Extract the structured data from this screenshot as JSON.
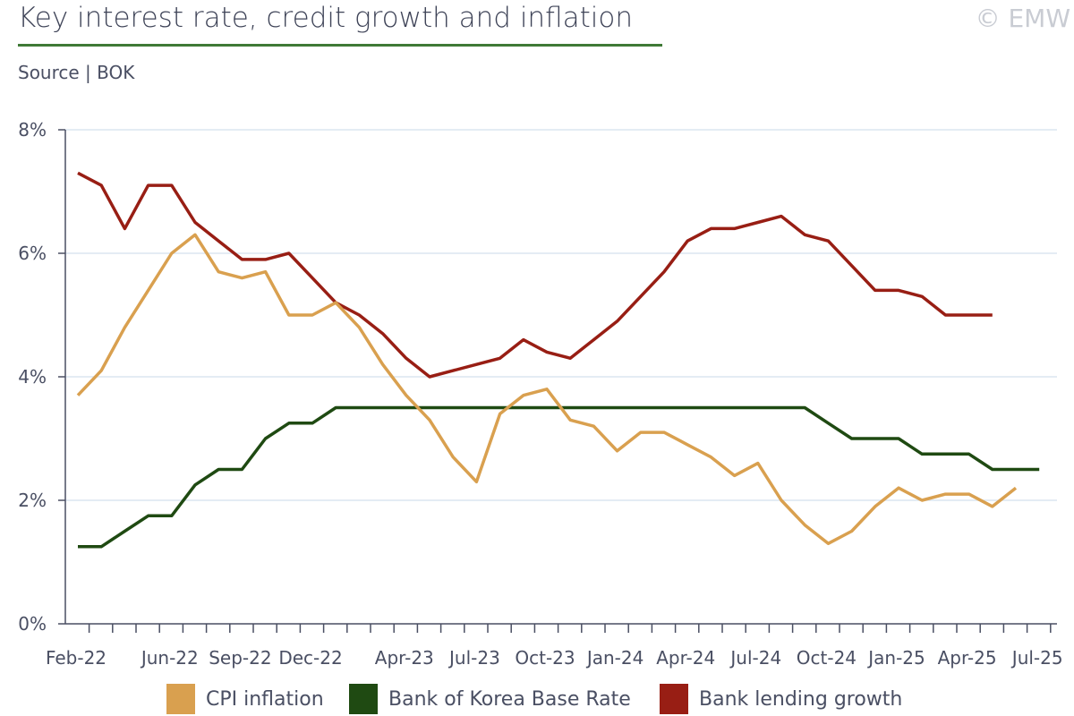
{
  "header": {
    "title": "Key interest rate, credit growth and inflation",
    "source": "Source | BOK",
    "copyright": "© EMW"
  },
  "colors": {
    "cpi": "#d9a04f",
    "base_rate": "#1f4a12",
    "lending": "#981e14",
    "grid": "#dbe6f0",
    "axis": "#4a4f63",
    "title_rule": "#3f7a36"
  },
  "chart_data": {
    "type": "line",
    "title": "Key interest rate, credit growth and inflation",
    "xlabel": "",
    "ylabel": "",
    "ylim": [
      0,
      8
    ],
    "y_ticks": [
      "0%",
      "2%",
      "4%",
      "6%",
      "8%"
    ],
    "y_tick_values": [
      0,
      2,
      4,
      6,
      8
    ],
    "grid": true,
    "legend_position": "bottom",
    "x": [
      "Feb-22",
      "Mar-22",
      "Apr-22",
      "May-22",
      "Jun-22",
      "Jul-22",
      "Aug-22",
      "Sep-22",
      "Oct-22",
      "Nov-22",
      "Dec-22",
      "Jan-23",
      "Feb-23",
      "Mar-23",
      "Apr-23",
      "May-23",
      "Jun-23",
      "Jul-23",
      "Aug-23",
      "Sep-23",
      "Oct-23",
      "Nov-23",
      "Dec-23",
      "Jan-24",
      "Feb-24",
      "Mar-24",
      "Apr-24",
      "May-24",
      "Jun-24",
      "Jul-24",
      "Aug-24",
      "Sep-24",
      "Oct-24",
      "Nov-24",
      "Dec-24",
      "Jan-25",
      "Feb-25",
      "Mar-25",
      "Apr-25",
      "May-25",
      "Jun-25",
      "Jul-25"
    ],
    "x_tick_labels": [
      {
        "index": 0,
        "label": "Feb-22"
      },
      {
        "index": 4,
        "label": "Jun-22"
      },
      {
        "index": 7,
        "label": "Sep-22"
      },
      {
        "index": 10,
        "label": "Dec-22"
      },
      {
        "index": 14,
        "label": "Apr-23"
      },
      {
        "index": 17,
        "label": "Jul-23"
      },
      {
        "index": 20,
        "label": "Oct-23"
      },
      {
        "index": 23,
        "label": "Jan-24"
      },
      {
        "index": 26,
        "label": "Apr-24"
      },
      {
        "index": 29,
        "label": "Jul-24"
      },
      {
        "index": 32,
        "label": "Oct-24"
      },
      {
        "index": 35,
        "label": "Jan-25"
      },
      {
        "index": 38,
        "label": "Apr-25"
      },
      {
        "index": 41,
        "label": "Jul-25"
      }
    ],
    "series": [
      {
        "name": "CPI inflation",
        "key": "cpi",
        "values": [
          3.7,
          4.1,
          4.8,
          5.4,
          6.0,
          6.3,
          5.7,
          5.6,
          5.7,
          5.0,
          5.0,
          5.2,
          4.8,
          4.2,
          3.7,
          3.3,
          2.7,
          2.3,
          3.4,
          3.7,
          3.8,
          3.3,
          3.2,
          2.8,
          3.1,
          3.1,
          2.9,
          2.7,
          2.4,
          2.6,
          2.0,
          1.6,
          1.3,
          1.5,
          1.9,
          2.2,
          2.0,
          2.1,
          2.1,
          1.9,
          2.2,
          null
        ]
      },
      {
        "name": "Bank of Korea Base Rate",
        "key": "base_rate",
        "values": [
          1.25,
          1.25,
          1.5,
          1.75,
          1.75,
          2.25,
          2.5,
          2.5,
          3.0,
          3.25,
          3.25,
          3.5,
          3.5,
          3.5,
          3.5,
          3.5,
          3.5,
          3.5,
          3.5,
          3.5,
          3.5,
          3.5,
          3.5,
          3.5,
          3.5,
          3.5,
          3.5,
          3.5,
          3.5,
          3.5,
          3.5,
          3.5,
          3.25,
          3.0,
          3.0,
          3.0,
          2.75,
          2.75,
          2.75,
          2.5,
          2.5,
          2.5
        ]
      },
      {
        "name": "Bank lending growth",
        "key": "lending",
        "values": [
          7.3,
          7.1,
          6.4,
          7.1,
          7.1,
          6.5,
          6.2,
          5.9,
          5.9,
          6.0,
          5.6,
          5.2,
          5.0,
          4.7,
          4.3,
          4.0,
          4.1,
          4.2,
          4.3,
          4.6,
          4.4,
          4.3,
          4.6,
          4.9,
          5.3,
          5.7,
          6.2,
          6.4,
          6.4,
          6.5,
          6.6,
          6.3,
          6.2,
          5.8,
          5.4,
          5.4,
          5.3,
          5.0,
          5.0,
          5.0,
          null,
          null
        ]
      }
    ]
  }
}
